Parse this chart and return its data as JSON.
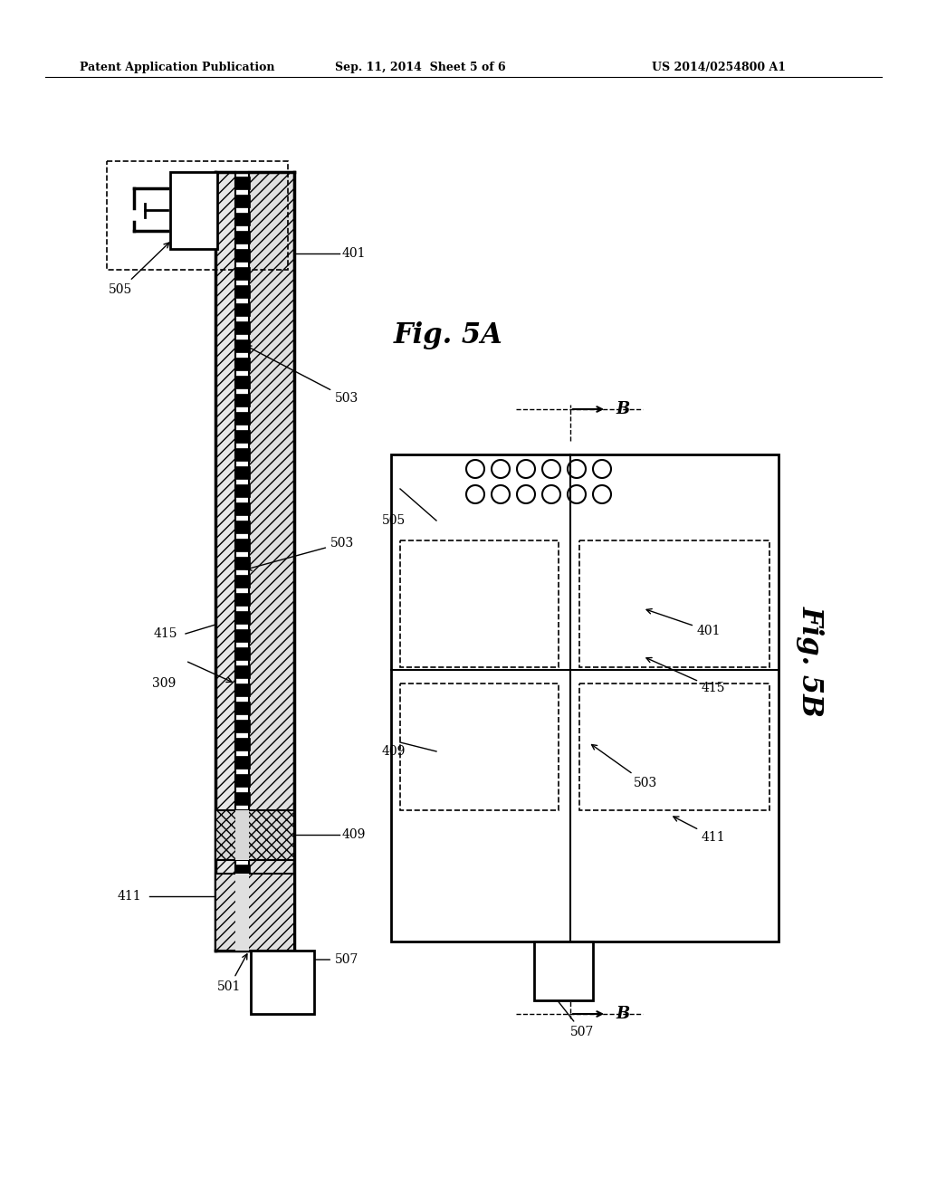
{
  "bg_color": "#ffffff",
  "header_text1": "Patent Application Publication",
  "header_text2": "Sep. 11, 2014  Sheet 5 of 6",
  "header_text3": "US 2014/0254800 A1",
  "fig5a_label": "Fig. 5A",
  "fig5b_label": "Fig. 5B"
}
